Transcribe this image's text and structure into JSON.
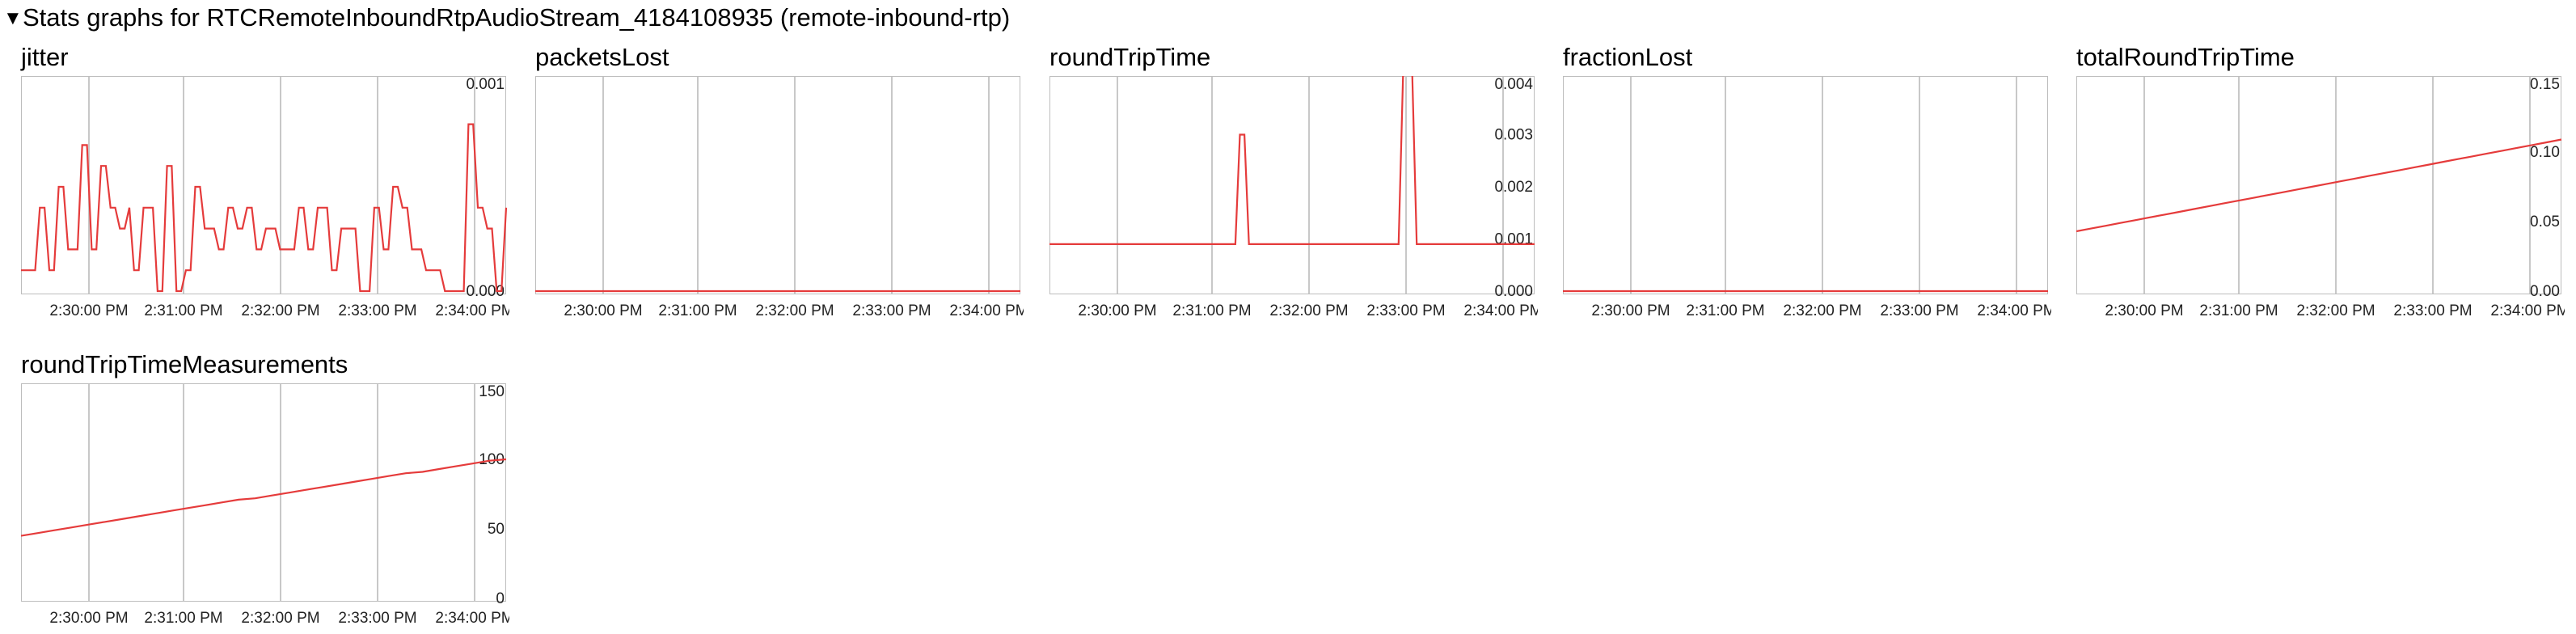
{
  "header": {
    "title": "Stats graphs for RTCRemoteInboundRtpAudioStream_4184108935 (remote-inbound-rtp)",
    "toggle_icon": "triangle-down-icon"
  },
  "colors": {
    "line": "#e53b3b",
    "grid": "#c8c8c8",
    "axis": "#bdbdbd"
  },
  "chart_data": [
    {
      "name": "jitter",
      "type": "line",
      "x_ticks": [
        "2:30:00 PM",
        "2:31:00 PM",
        "2:32:00 PM",
        "2:33:00 PM",
        "2:34:00 PM"
      ],
      "y_ticks": [
        "0.000",
        "0.001"
      ],
      "ylim": [
        0,
        0.001
      ],
      "grid": true,
      "values": [
        0.0001,
        0.0001,
        0.0001,
        0.0001,
        0.0004,
        0.0004,
        0.0001,
        0.0001,
        0.0005,
        0.0005,
        0.0002,
        0.0002,
        0.0002,
        0.0007,
        0.0007,
        0.0002,
        0.0002,
        0.0006,
        0.0006,
        0.0004,
        0.0004,
        0.0003,
        0.0003,
        0.0004,
        0.0001,
        0.0001,
        0.0004,
        0.0004,
        0.0004,
        0.0,
        0.0,
        0.0006,
        0.0006,
        0.0,
        0.0,
        0.0001,
        0.0001,
        0.0005,
        0.0005,
        0.0003,
        0.0003,
        0.0003,
        0.0002,
        0.0002,
        0.0004,
        0.0004,
        0.0003,
        0.0003,
        0.0004,
        0.0004,
        0.0002,
        0.0002,
        0.0003,
        0.0003,
        0.0003,
        0.0002,
        0.0002,
        0.0002,
        0.0002,
        0.0004,
        0.0004,
        0.0002,
        0.0002,
        0.0004,
        0.0004,
        0.0004,
        0.0001,
        0.0001,
        0.0003,
        0.0003,
        0.0003,
        0.0003,
        0.0,
        0.0,
        0.0,
        0.0004,
        0.0004,
        0.0002,
        0.0002,
        0.0005,
        0.0005,
        0.0004,
        0.0004,
        0.0002,
        0.0002,
        0.0002,
        0.0001,
        0.0001,
        0.0001,
        0.0001,
        0.0,
        0.0,
        0.0,
        0.0,
        0.0,
        0.0008,
        0.0008,
        0.0004,
        0.0004,
        0.0003,
        0.0003,
        0.0,
        0.0,
        0.0004
      ]
    },
    {
      "name": "packetsLost",
      "type": "line",
      "x_ticks": [
        "2:30:00 PM",
        "2:31:00 PM",
        "2:32:00 PM",
        "2:33:00 PM",
        "2:34:00 PM"
      ],
      "y_ticks": [],
      "ylim": [
        0,
        1
      ],
      "grid": true,
      "values": [
        0,
        0
      ]
    },
    {
      "name": "roundTripTime",
      "type": "line",
      "x_ticks": [
        "2:30:00 PM",
        "2:31:00 PM",
        "2:32:00 PM",
        "2:33:00 PM",
        "2:34:00 PM"
      ],
      "y_ticks": [
        "0.000",
        "0.001",
        "0.002",
        "0.003",
        "0.004"
      ],
      "ylim": [
        0,
        0.004
      ],
      "grid": true,
      "values": [
        0.0009,
        0.0009,
        0.0009,
        0.0009,
        0.0009,
        0.0009,
        0.0009,
        0.0009,
        0.0009,
        0.0009,
        0.0009,
        0.0009,
        0.0009,
        0.0009,
        0.0009,
        0.0009,
        0.0009,
        0.0009,
        0.0009,
        0.0009,
        0.0009,
        0.0009,
        0.0009,
        0.0009,
        0.0009,
        0.0009,
        0.0009,
        0.0009,
        0.0009,
        0.0009,
        0.0009,
        0.0009,
        0.0009,
        0.0009,
        0.0009,
        0.0009,
        0.0009,
        0.0009,
        0.0009,
        0.0009,
        0.0009,
        0.0009,
        0.003,
        0.003,
        0.0009,
        0.0009,
        0.0009,
        0.0009,
        0.0009,
        0.0009,
        0.0009,
        0.0009,
        0.0009,
        0.0009,
        0.0009,
        0.0009,
        0.0009,
        0.0009,
        0.0009,
        0.0009,
        0.0009,
        0.0009,
        0.0009,
        0.0009,
        0.0009,
        0.0009,
        0.0009,
        0.0009,
        0.0009,
        0.0009,
        0.0009,
        0.0009,
        0.0009,
        0.0009,
        0.0009,
        0.0009,
        0.0009,
        0.0009,
        0.0042,
        0.0042,
        0.0042,
        0.0009,
        0.0009,
        0.0009,
        0.0009,
        0.0009,
        0.0009,
        0.0009,
        0.0009,
        0.0009,
        0.0009,
        0.0009,
        0.0009,
        0.0009,
        0.0009,
        0.0009,
        0.0009,
        0.0009,
        0.0009,
        0.0009,
        0.0009,
        0.0009,
        0.0009,
        0.0009,
        0.0009,
        0.0009,
        0.0009,
        0.0009
      ]
    },
    {
      "name": "fractionLost",
      "type": "line",
      "x_ticks": [
        "2:30:00 PM",
        "2:31:00 PM",
        "2:32:00 PM",
        "2:33:00 PM",
        "2:34:00 PM"
      ],
      "y_ticks": [],
      "ylim": [
        0,
        1
      ],
      "grid": true,
      "values": [
        0,
        0
      ]
    },
    {
      "name": "totalRoundTripTime",
      "type": "line",
      "x_ticks": [
        "2:30:00 PM",
        "2:31:00 PM",
        "2:32:00 PM",
        "2:33:00 PM",
        "2:34:00 PM"
      ],
      "y_ticks": [
        "0.00",
        "0.05",
        "0.10",
        "0.15"
      ],
      "ylim": [
        0,
        0.15
      ],
      "grid": true,
      "values": [
        0.043,
        0.045,
        0.047,
        0.049,
        0.051,
        0.053,
        0.055,
        0.057,
        0.059,
        0.061,
        0.063,
        0.065,
        0.067,
        0.069,
        0.071,
        0.073,
        0.075,
        0.077,
        0.079,
        0.081,
        0.083,
        0.085,
        0.087,
        0.089,
        0.091,
        0.093,
        0.095,
        0.097,
        0.099,
        0.101,
        0.103,
        0.105,
        0.107,
        0.109
      ]
    },
    {
      "name": "roundTripTimeMeasurements",
      "type": "line",
      "x_ticks": [
        "2:30:00 PM",
        "2:31:00 PM",
        "2:32:00 PM",
        "2:33:00 PM",
        "2:34:00 PM"
      ],
      "y_ticks": [
        "0",
        "50",
        "100",
        "150"
      ],
      "ylim": [
        0,
        150
      ],
      "grid": true,
      "values": [
        45,
        47,
        49,
        51,
        53,
        55,
        57,
        59,
        61,
        63,
        65,
        67,
        69,
        71,
        72,
        74,
        76,
        78,
        80,
        82,
        84,
        86,
        88,
        90,
        91,
        93,
        95,
        97,
        99,
        100
      ]
    }
  ]
}
